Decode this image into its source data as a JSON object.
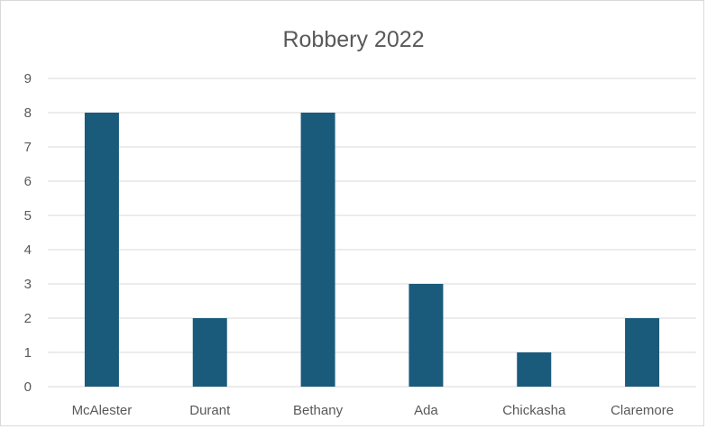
{
  "chart_data": {
    "type": "bar",
    "title": "Robbery 2022",
    "categories": [
      "McAlester",
      "Durant",
      "Bethany",
      "Ada",
      "Chickasha",
      "Claremore"
    ],
    "values": [
      8,
      2,
      8,
      3,
      1,
      2
    ],
    "xlabel": "",
    "ylabel": "",
    "ylim": [
      0,
      9
    ],
    "yticks": [
      0,
      1,
      2,
      3,
      4,
      5,
      6,
      7,
      8,
      9
    ],
    "grid": true,
    "legend": "none",
    "bar_color": "#1a5b7c",
    "grid_color": "#d9d9d9",
    "text_color": "#595959"
  }
}
